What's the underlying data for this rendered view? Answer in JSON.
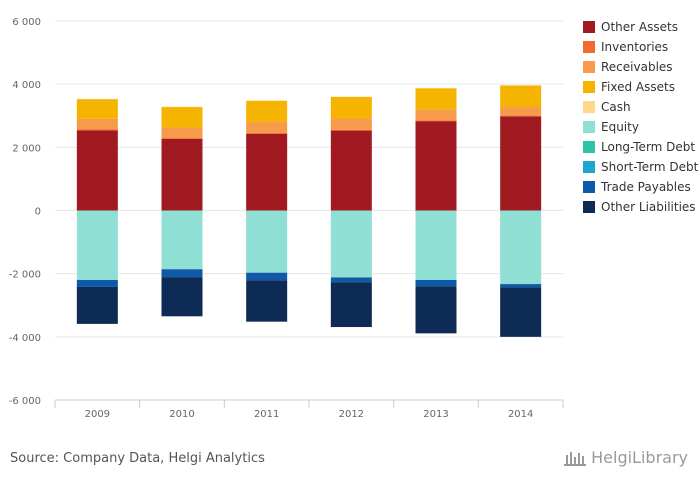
{
  "chart_data": {
    "type": "bar",
    "stacked": true,
    "categories": [
      "2009",
      "2010",
      "2011",
      "2012",
      "2013",
      "2014"
    ],
    "ylim": [
      -6000,
      6000
    ],
    "yticks": [
      6000,
      4000,
      2000,
      0,
      -2000,
      -4000,
      -6000
    ],
    "ytick_labels": [
      "6 000",
      "4 000",
      "2 000",
      "0",
      "-2 000",
      "-4 000",
      "-6 000"
    ],
    "grid": true,
    "legend_position": "right",
    "series": [
      {
        "name": "Other Assets",
        "color": "#a11a22",
        "values": [
          2540,
          2270,
          2430,
          2530,
          2830,
          2980
        ]
      },
      {
        "name": "Inventories",
        "color": "#f26b2e",
        "values": [
          25,
          25,
          25,
          25,
          25,
          25
        ]
      },
      {
        "name": "Receivables",
        "color": "#f79a4a",
        "values": [
          340,
          330,
          350,
          360,
          350,
          270
        ]
      },
      {
        "name": "Fixed Assets",
        "color": "#f5b400",
        "values": [
          620,
          650,
          670,
          680,
          660,
          680
        ]
      },
      {
        "name": "Cash",
        "color": "#fdd78a",
        "values": [
          10,
          10,
          10,
          10,
          10,
          10
        ]
      },
      {
        "name": "Equity",
        "color": "#90dfd4",
        "values": [
          -2200,
          -1860,
          -1970,
          -2120,
          -2200,
          -2330
        ]
      },
      {
        "name": "Long-Term Debt",
        "color": "#2ec4aa",
        "values": [
          0,
          0,
          0,
          0,
          0,
          0
        ]
      },
      {
        "name": "Short-Term Debt",
        "color": "#1ea6d2",
        "values": [
          0,
          0,
          0,
          0,
          0,
          0
        ]
      },
      {
        "name": "Trade Payables",
        "color": "#0f5aa8",
        "values": [
          -220,
          -250,
          -240,
          -150,
          -200,
          -100
        ]
      },
      {
        "name": "Other Liabilities",
        "color": "#0d2b55",
        "values": [
          -1170,
          -1240,
          -1310,
          -1420,
          -1490,
          -1570
        ]
      }
    ]
  },
  "footer": {
    "source": "Source: Company Data, Helgi Analytics",
    "brand": "HelgiLibrary"
  }
}
